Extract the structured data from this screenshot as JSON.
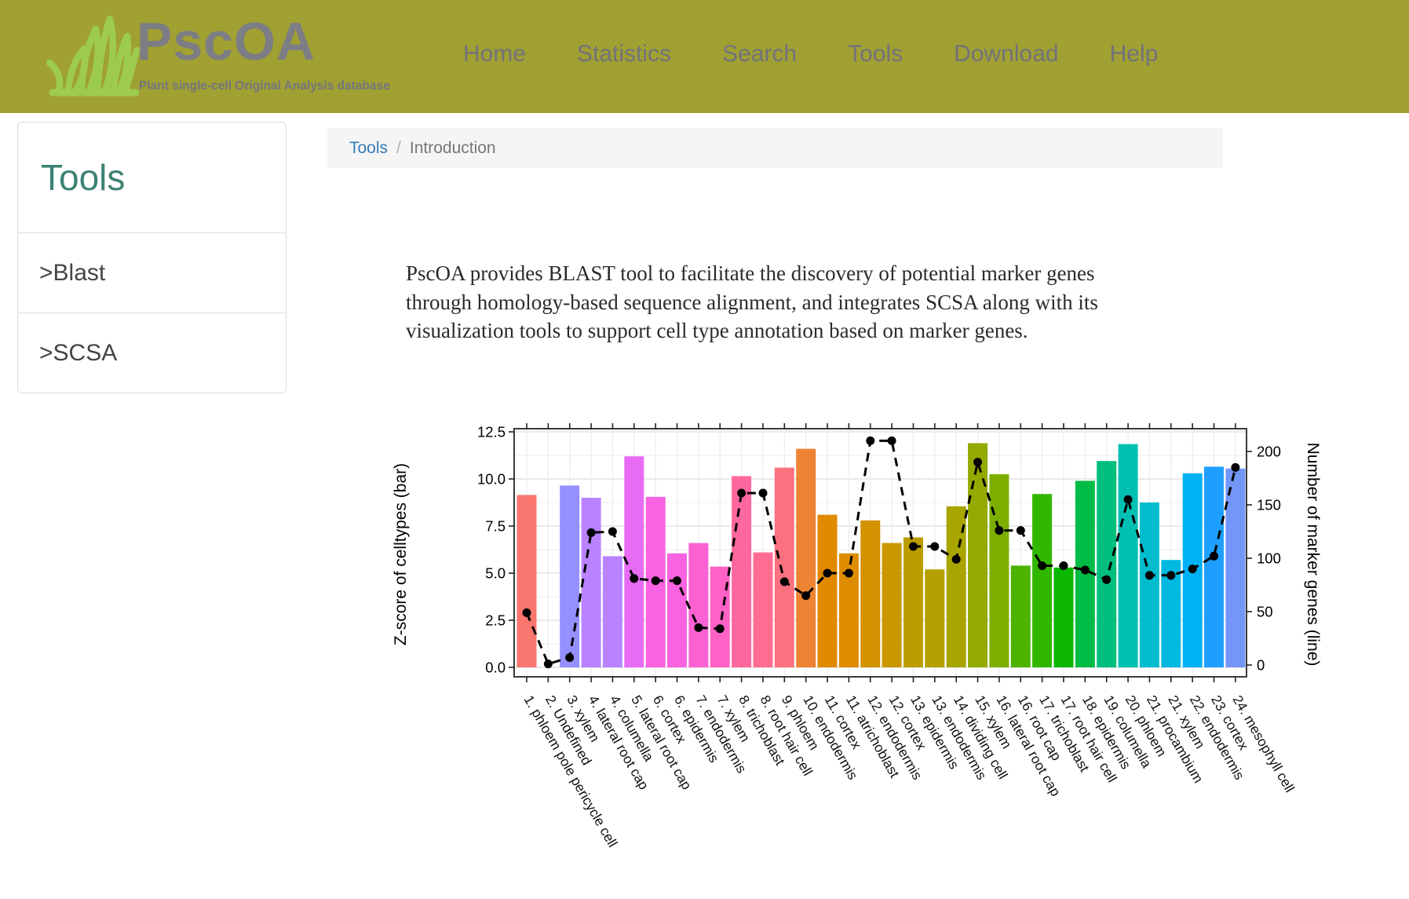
{
  "header": {
    "logo": {
      "title": "PscOA",
      "tagline": "Plant single-cell Original Analysis database",
      "icon": "grass-icon",
      "bg_color": "#A0A033",
      "grass_color": "#9CCB50",
      "title_color": "#7D7D85"
    },
    "nav": [
      {
        "label": "Home"
      },
      {
        "label": "Statistics"
      },
      {
        "label": "Search"
      },
      {
        "label": "Tools"
      },
      {
        "label": "Download"
      },
      {
        "label": "Help"
      }
    ]
  },
  "sidebar": {
    "title": "Tools",
    "items": [
      {
        "label": ">Blast"
      },
      {
        "label": ">SCSA"
      }
    ]
  },
  "breadcrumb": {
    "link": "Tools",
    "separator": "/",
    "current": "Introduction",
    "link_color": "#337AB7"
  },
  "intro": {
    "text": "PscOA provides BLAST tool to facilitate the discovery of potential marker genes through homology-based sequence alignment, and integrates SCSA along with its visualization tools to support cell type annotation based on marker genes."
  },
  "chart_data": {
    "type": "bar",
    "subtype": "dual-axis bar+line",
    "categories": [
      "1. phloem pole pericycle cell",
      "2. Undefined",
      "3. xylem",
      "4. lateral root cap",
      "4. columella",
      "5. lateral root cap",
      "6. cortex",
      "6. epidermis",
      "7. endodermis",
      "7. xylem",
      "8. trichoblast",
      "8. root hair cell",
      "9. phloem",
      "10. endodermis",
      "11. cortex",
      "11. atrichoblast",
      "12. endodermis",
      "12. cortex",
      "13. epidermis",
      "13. endodermis",
      "14. dividing cell",
      "15. xylem",
      "16. lateral root cap",
      "16. root cap",
      "17. trichoblast",
      "17. root hair cell",
      "18. epidermis",
      "19. columella",
      "20. phloem",
      "21. procambium",
      "21. xylem",
      "22. endodermis",
      "23. cortex",
      "24. mesophyll cell"
    ],
    "series": [
      {
        "name": "Z-score of celltypes (bar)",
        "type": "bar",
        "axis": "left",
        "values": [
          9.15,
          0,
          9.65,
          9.0,
          5.9,
          11.2,
          9.05,
          6.05,
          6.6,
          5.35,
          10.15,
          6.1,
          10.6,
          11.6,
          8.1,
          6.05,
          7.8,
          6.6,
          6.9,
          5.2,
          8.55,
          11.9,
          10.25,
          5.4,
          9.2,
          5.3,
          9.9,
          10.95,
          11.85,
          8.75,
          5.7,
          10.3,
          10.65,
          10.55
        ]
      },
      {
        "name": "Number of marker genes (line)",
        "type": "line",
        "axis": "right",
        "values": [
          49,
          1,
          7,
          124,
          125,
          81,
          79,
          79,
          35,
          34,
          161,
          161,
          78,
          65,
          86,
          86,
          210,
          210,
          111,
          111,
          99,
          190,
          126,
          126,
          93,
          93,
          89,
          80,
          155,
          84,
          84,
          90,
          102,
          185
        ]
      }
    ],
    "bar_colors": [
      "#F8766D",
      "#F8766D",
      "#9590FF",
      "#B983FF",
      "#B983FF",
      "#E76BF3",
      "#F763E0",
      "#F763E0",
      "#FC61D4",
      "#FF61C7",
      "#FF689E",
      "#FF6C92",
      "#FC717F",
      "#EE8433",
      "#E18A00",
      "#DE8C00",
      "#D39200",
      "#C99800",
      "#BC9D00",
      "#B4A000",
      "#A8A400",
      "#94AA00",
      "#7CAE00",
      "#4CB400",
      "#31B700",
      "#0CB702",
      "#00BB45",
      "#00BE7C",
      "#00C0B4",
      "#00BDCE",
      "#00B8E0",
      "#00B1F3",
      "#1D9FFF",
      "#7396F8"
    ],
    "line_color": "#000000",
    "line_style": "dashed with filled point markers",
    "ylabel_left": "Z-score of celltypes (bar)",
    "ylabel_right": "Number of marker genes (line)",
    "yticks_left": [
      0.0,
      2.5,
      5.0,
      7.5,
      10.0,
      12.5
    ],
    "ytick_labels_left": [
      "0.0",
      "2.5",
      "5.0",
      "7.5",
      "10.0",
      "12.5"
    ],
    "yticks_right": [
      0,
      50,
      100,
      150,
      200
    ],
    "ylim_left": [
      0,
      12.5
    ],
    "ylim_right": [
      0,
      219
    ],
    "xlabel": "",
    "title": "",
    "grid": true,
    "legend_position": "none",
    "x_label_rotation_deg": 60
  }
}
